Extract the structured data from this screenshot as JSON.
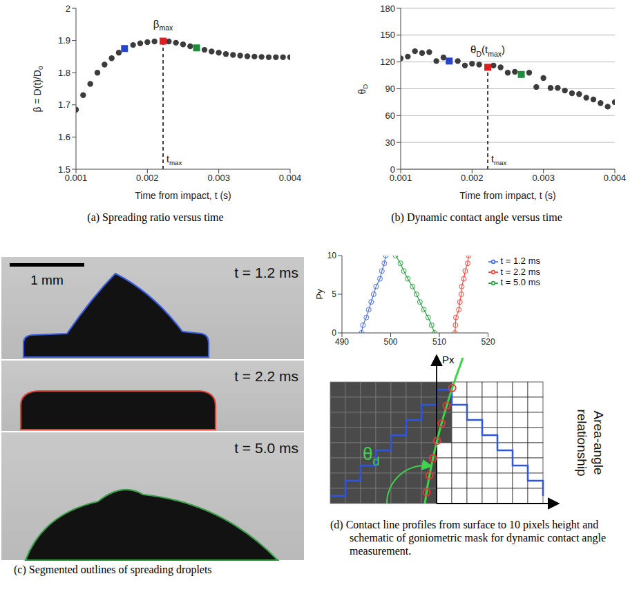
{
  "chart_data": [
    {
      "type": "scatter",
      "caption": "(a) Spreading ratio versus time",
      "xlabel": "Time from impact, t (s)",
      "ylabel": [
        "β = D(t)/D",
        {
          "sub": "0"
        }
      ],
      "xlim": [
        0.001,
        0.004
      ],
      "xticks": [
        0.001,
        0.002,
        0.003,
        0.004
      ],
      "ylim": [
        1.5,
        2
      ],
      "yticks": [
        1.5,
        1.6,
        1.7,
        1.8,
        1.9,
        2
      ],
      "grid": false,
      "series": [
        {
          "color": "#3c3c3c",
          "marker": "circle",
          "x": [
            0.001,
            0.0011,
            0.0012,
            0.0013,
            0.0014,
            0.0015,
            0.0016,
            0.0018,
            0.0019,
            0.002,
            0.0021,
            0.0023,
            0.0024,
            0.0025,
            0.0026,
            0.0028,
            0.0029,
            0.003,
            0.0031,
            0.0032,
            0.0033,
            0.0034,
            0.0035,
            0.0036,
            0.0037,
            0.0038,
            0.0039,
            0.004
          ],
          "values": [
            1.685,
            1.73,
            1.765,
            1.8,
            1.825,
            1.845,
            1.862,
            1.886,
            1.891,
            1.895,
            1.897,
            1.897,
            1.893,
            1.888,
            1.882,
            1.871,
            1.866,
            1.862,
            1.858,
            1.855,
            1.853,
            1.851,
            1.85,
            1.849,
            1.848,
            1.848,
            1.848,
            1.848
          ]
        },
        {
          "marker": "square",
          "colors": [
            "#2745c9",
            "#e01e1e",
            "#1e8c3a"
          ],
          "x": [
            0.00168,
            0.00222,
            0.00269
          ],
          "values": [
            1.875,
            1.898,
            1.877
          ]
        }
      ],
      "vline": {
        "x": 0.00222,
        "y": 1.898,
        "label": [
          "t",
          {
            "sub": "max"
          }
        ]
      },
      "peak_label": {
        "x": 0.00222,
        "y": 1.898,
        "text": [
          "β",
          {
            "sub": "max"
          }
        ]
      }
    },
    {
      "type": "scatter",
      "caption": "(b) Dynamic contact angle versus time",
      "xlabel": "Time from impact, t (s)",
      "ylabel": [
        "θ",
        {
          "sub": "D"
        }
      ],
      "xlim": [
        0.001,
        0.004
      ],
      "xticks": [
        0.001,
        0.002,
        0.003,
        0.004
      ],
      "ylim": [
        0,
        180
      ],
      "yticks": [
        0,
        30,
        60,
        90,
        120,
        150,
        180
      ],
      "grid": true,
      "series": [
        {
          "color": "#3c3c3c",
          "marker": "circle",
          "x": [
            0.001,
            0.0011,
            0.0012,
            0.0013,
            0.0014,
            0.0015,
            0.0016,
            0.0018,
            0.0019,
            0.002,
            0.0021,
            0.0023,
            0.0024,
            0.0025,
            0.0026,
            0.0028,
            0.0029,
            0.003,
            0.0031,
            0.0032,
            0.0033,
            0.0034,
            0.0035,
            0.0036,
            0.0037,
            0.0038,
            0.0039,
            0.004
          ],
          "values": [
            124,
            126,
            132,
            130,
            131,
            121,
            125,
            121,
            116,
            118,
            117,
            116,
            114,
            108,
            109,
            108,
            92,
            102,
            91,
            91,
            88,
            85,
            84,
            80,
            78,
            74,
            70,
            75
          ]
        },
        {
          "marker": "square",
          "colors": [
            "#2745c9",
            "#e01e1e",
            "#1e8c3a"
          ],
          "x": [
            0.00168,
            0.00222,
            0.00269
          ],
          "values": [
            121,
            114,
            106
          ]
        }
      ],
      "vline": {
        "x": 0.00222,
        "y": 114,
        "label": [
          "t",
          {
            "sub": "max"
          }
        ]
      },
      "peak_label": {
        "x": 0.00222,
        "y": 114,
        "text": [
          "θ",
          {
            "sub": "D"
          },
          "(t",
          {
            "sub": "max"
          },
          ")"
        ]
      }
    },
    {
      "type": "line",
      "ylabel": "Py",
      "xlim": [
        490,
        520
      ],
      "xticks": [
        490,
        500,
        510,
        520
      ],
      "ylim": [
        0,
        10
      ],
      "yticks": [
        0,
        5,
        10
      ],
      "legend": "right",
      "series": [
        {
          "name": "t = 1.2 ms",
          "color": "#4a6fe3",
          "marker": "circle",
          "x": [
            494,
            494.3,
            495,
            495.5,
            496,
            496.5,
            497,
            497.8,
            498.2,
            498.7,
            499
          ],
          "values": [
            0,
            1,
            2,
            3,
            4,
            5,
            6,
            7,
            8,
            9,
            10
          ]
        },
        {
          "name": "t = 2.2 ms",
          "color": "#ef4a3c",
          "marker": "circle",
          "x": [
            513.2,
            513.3,
            513.4,
            514,
            514.2,
            514.5,
            514.6,
            515,
            515.3,
            515.8,
            516
          ],
          "values": [
            0,
            1,
            2,
            3,
            4,
            5,
            6,
            7,
            8,
            9,
            10
          ]
        },
        {
          "name": "t = 5.0 ms",
          "color": "#2f9e44",
          "marker": "circle",
          "x": [
            509,
            508.4,
            507.7,
            506.8,
            506,
            505.3,
            504.5,
            503.5,
            502.7,
            502,
            501
          ],
          "values": [
            0,
            1,
            2,
            3,
            4,
            5,
            6,
            7,
            8,
            9,
            10
          ]
        }
      ]
    }
  ],
  "panel_c": {
    "caption": "(c) Segmented outlines of spreading droplets",
    "scale_bar": "1 mm",
    "frames": [
      {
        "label": "t = 1.2 ms",
        "color": "#3a5ee0"
      },
      {
        "label": "t = 2.2 ms",
        "color": "#e0463a"
      },
      {
        "label": "t = 5.0 ms",
        "color": "#3aa04a"
      }
    ]
  },
  "schematic": {
    "caption": "(d) Contact line profiles from surface to 10 pixels height and schematic of goniometric mask for dynamic contact angle measurement.",
    "axis_label": "Px",
    "angle_label": [
      "θ",
      {
        "sub": "d"
      }
    ],
    "side_label": "Area-angle relationship"
  }
}
